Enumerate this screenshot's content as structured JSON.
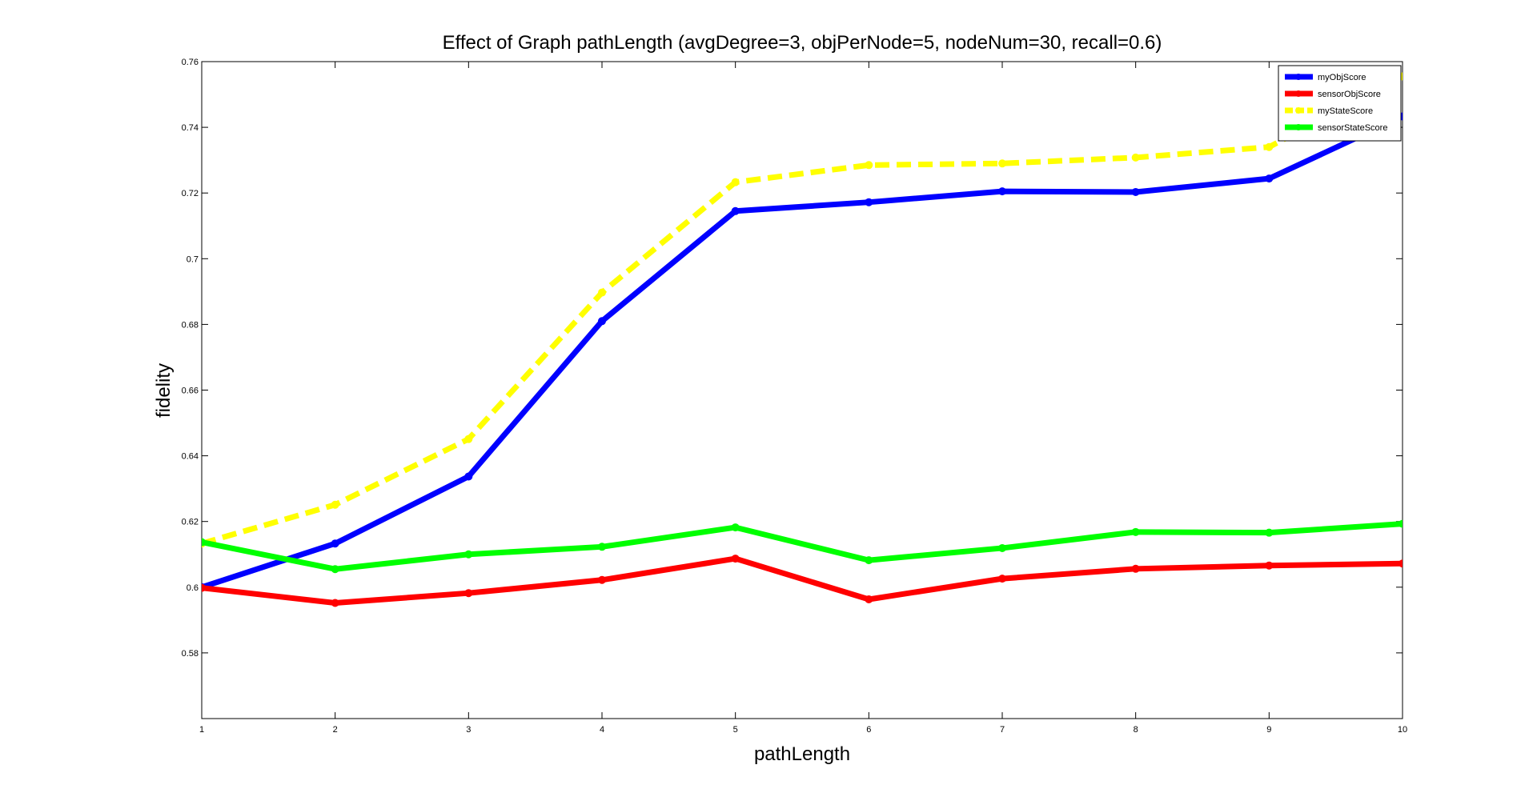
{
  "chart_data": {
    "type": "line",
    "title": "Effect of Graph pathLength (avgDegree=3, objPerNode=5, nodeNum=30, recall=0.6)",
    "xlabel": "pathLength",
    "ylabel": "fidelity",
    "x": [
      1,
      2,
      3,
      4,
      5,
      6,
      7,
      8,
      9,
      10
    ],
    "xlim": [
      1,
      10
    ],
    "ylim": [
      0.56,
      0.76
    ],
    "xticks": [
      "1",
      "2",
      "3",
      "4",
      "5",
      "6",
      "7",
      "8",
      "9",
      "10"
    ],
    "yticks": [
      "0.58",
      "0.6",
      "0.62",
      "0.64",
      "0.66",
      "0.68",
      "0.7",
      "0.72",
      "0.74",
      "0.76"
    ],
    "grid": false,
    "legend_position": "top-right",
    "series": [
      {
        "name": "myObjScore",
        "color": "#0000ff",
        "style": "solid",
        "values": [
          0.6,
          0.6133,
          0.6337,
          0.681,
          0.7145,
          0.7172,
          0.7205,
          0.7203,
          0.7244,
          0.7433
        ]
      },
      {
        "name": "sensorObjScore",
        "color": "#ff0000",
        "style": "solid",
        "values": [
          0.5998,
          0.5952,
          0.5982,
          0.6022,
          0.6087,
          0.5963,
          0.6026,
          0.6056,
          0.6066,
          0.6072
        ]
      },
      {
        "name": "myStateScore",
        "color": "#ffff00",
        "style": "dashed",
        "values": [
          0.6133,
          0.6251,
          0.6451,
          0.6897,
          0.7233,
          0.7285,
          0.729,
          0.7308,
          0.734,
          0.7555
        ]
      },
      {
        "name": "sensorStateScore",
        "color": "#00ff00",
        "style": "solid",
        "values": [
          0.6137,
          0.6055,
          0.61,
          0.6123,
          0.6182,
          0.6082,
          0.6119,
          0.6168,
          0.6166,
          0.6193
        ]
      }
    ]
  }
}
